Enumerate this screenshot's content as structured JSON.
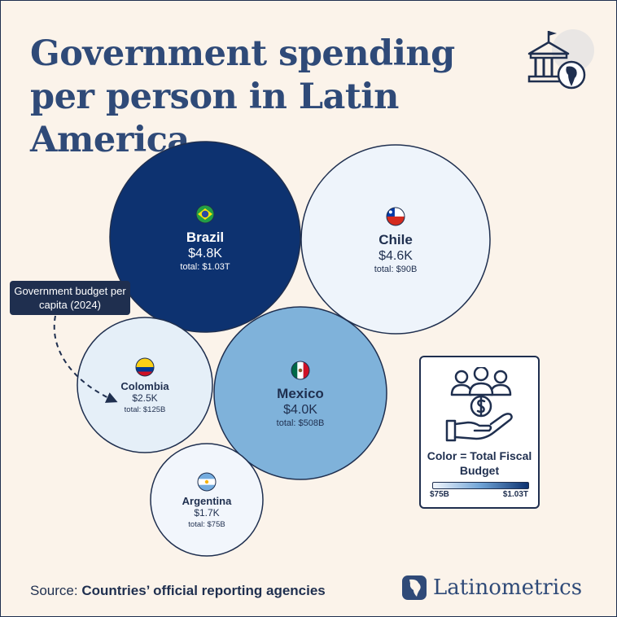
{
  "title": "Government spending per person in Latin America",
  "annotation": "Government budget per capita (2024)",
  "legend": {
    "title": "Color = Total Fiscal Budget",
    "min_label": "$75B",
    "max_label": "$1.03T"
  },
  "source": {
    "prefix": "Source: ",
    "text": "Countries’ official reporting agencies"
  },
  "brand": "Latinometrics",
  "colors": {
    "background": "#fbf3ea",
    "title": "#2f4a78",
    "dark": "#1f2f4f",
    "scale_low": "#f2f6fc",
    "scale_high": "#0d3270"
  },
  "icons": [
    "government-building-icon",
    "globe-icon",
    "people-money-hand-icon",
    "latinometrics-logo-icon"
  ],
  "chart_data": {
    "type": "bubble",
    "size_encoding": "Government budget per capita (2024)",
    "color_encoding": "Total Fiscal Budget",
    "series": [
      {
        "name": "Brazil",
        "value": 4.8,
        "value_label": "$4.8K",
        "total": 1030,
        "total_label": "total: $1.03T",
        "flag": "brazil-flag-icon"
      },
      {
        "name": "Chile",
        "value": 4.6,
        "value_label": "$4.6K",
        "total": 90,
        "total_label": "total: $90B",
        "flag": "chile-flag-icon"
      },
      {
        "name": "Mexico",
        "value": 4.0,
        "value_label": "$4.0K",
        "total": 508,
        "total_label": "total: $508B",
        "flag": "mexico-flag-icon"
      },
      {
        "name": "Colombia",
        "value": 2.5,
        "value_label": "$2.5K",
        "total": 125,
        "total_label": "total: $125B",
        "flag": "colombia-flag-icon"
      },
      {
        "name": "Argentina",
        "value": 1.7,
        "value_label": "$1.7K",
        "total": 75,
        "total_label": "total: $75B",
        "flag": "argentina-flag-icon"
      }
    ],
    "color_scale": {
      "min": 75,
      "max": 1030,
      "unit": "billion USD"
    }
  }
}
